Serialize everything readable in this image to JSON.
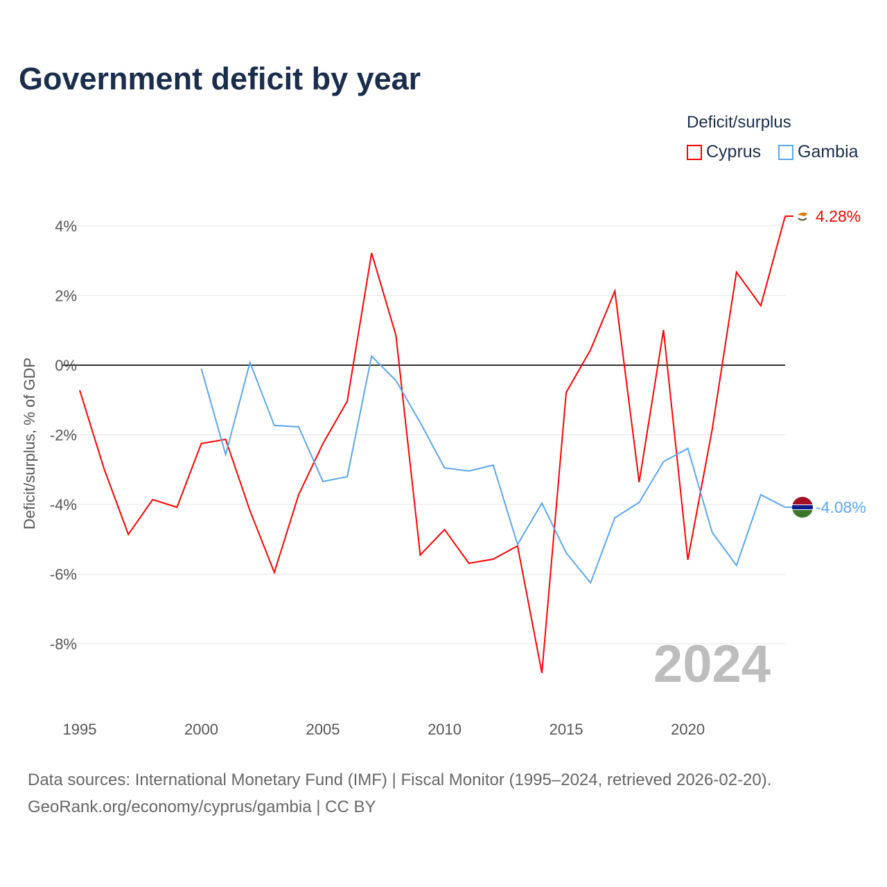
{
  "chart_data": {
    "type": "line",
    "title": "Government deficit by year",
    "ylabel": "Deficit/surplus, % of GDP",
    "xlabel": "",
    "legend_title": "Deficit/surplus",
    "legend_position": "top-right",
    "ylim": [
      -10,
      4.4
    ],
    "xlim": [
      1995,
      2024
    ],
    "yticks": [
      4,
      2,
      0,
      -2,
      -4,
      -6,
      -8
    ],
    "ytick_labels": [
      "4%",
      "2%",
      "0%",
      "-2%",
      "-4%",
      "-6%",
      "-8%"
    ],
    "xticks": [
      1995,
      2000,
      2005,
      2010,
      2015,
      2020
    ],
    "xtick_labels": [
      "1995",
      "2000",
      "2005",
      "2010",
      "2015",
      "2020"
    ],
    "grid": true,
    "year_watermark": "2024",
    "series": [
      {
        "name": "Cyprus",
        "color": "#ff0000",
        "end_label": "4.28%",
        "x": [
          1995,
          1996,
          1997,
          1998,
          1999,
          2000,
          2001,
          2002,
          2003,
          2004,
          2005,
          2006,
          2007,
          2008,
          2009,
          2010,
          2011,
          2012,
          2013,
          2014,
          2015,
          2016,
          2017,
          2018,
          2019,
          2020,
          2021,
          2022,
          2023,
          2024
        ],
        "values": [
          -0.72,
          -2.97,
          -4.86,
          -3.86,
          -4.08,
          -2.25,
          -2.13,
          -4.18,
          -5.95,
          -3.72,
          -2.25,
          -1.03,
          3.22,
          0.86,
          -5.45,
          -4.72,
          -5.69,
          -5.57,
          -5.19,
          -8.84,
          -0.78,
          0.44,
          2.13,
          -3.36,
          1.01,
          -5.59,
          -1.85,
          2.67,
          1.71,
          4.28
        ]
      },
      {
        "name": "Gambia",
        "color": "#5aa6ee",
        "end_label": "-4.08%",
        "x": [
          2000,
          2001,
          2002,
          2003,
          2004,
          2005,
          2006,
          2007,
          2008,
          2009,
          2010,
          2011,
          2012,
          2013,
          2014,
          2015,
          2016,
          2017,
          2018,
          2019,
          2020,
          2021,
          2022,
          2023,
          2024
        ],
        "values": [
          -0.1,
          -2.57,
          0.08,
          -1.73,
          -1.77,
          -3.34,
          -3.2,
          0.26,
          -0.44,
          -1.65,
          -2.95,
          -3.04,
          -2.87,
          -5.15,
          -3.96,
          -5.39,
          -6.25,
          -4.38,
          -3.94,
          -2.77,
          -2.39,
          -4.8,
          -5.75,
          -3.72,
          -4.08
        ]
      }
    ]
  },
  "source": {
    "line1": "Data sources: International Monetary Fund (IMF) | Fiscal Monitor (1995–2024, retrieved 2026-02-20).",
    "line2": "GeoRank.org/economy/cyprus/gambia | CC BY"
  }
}
